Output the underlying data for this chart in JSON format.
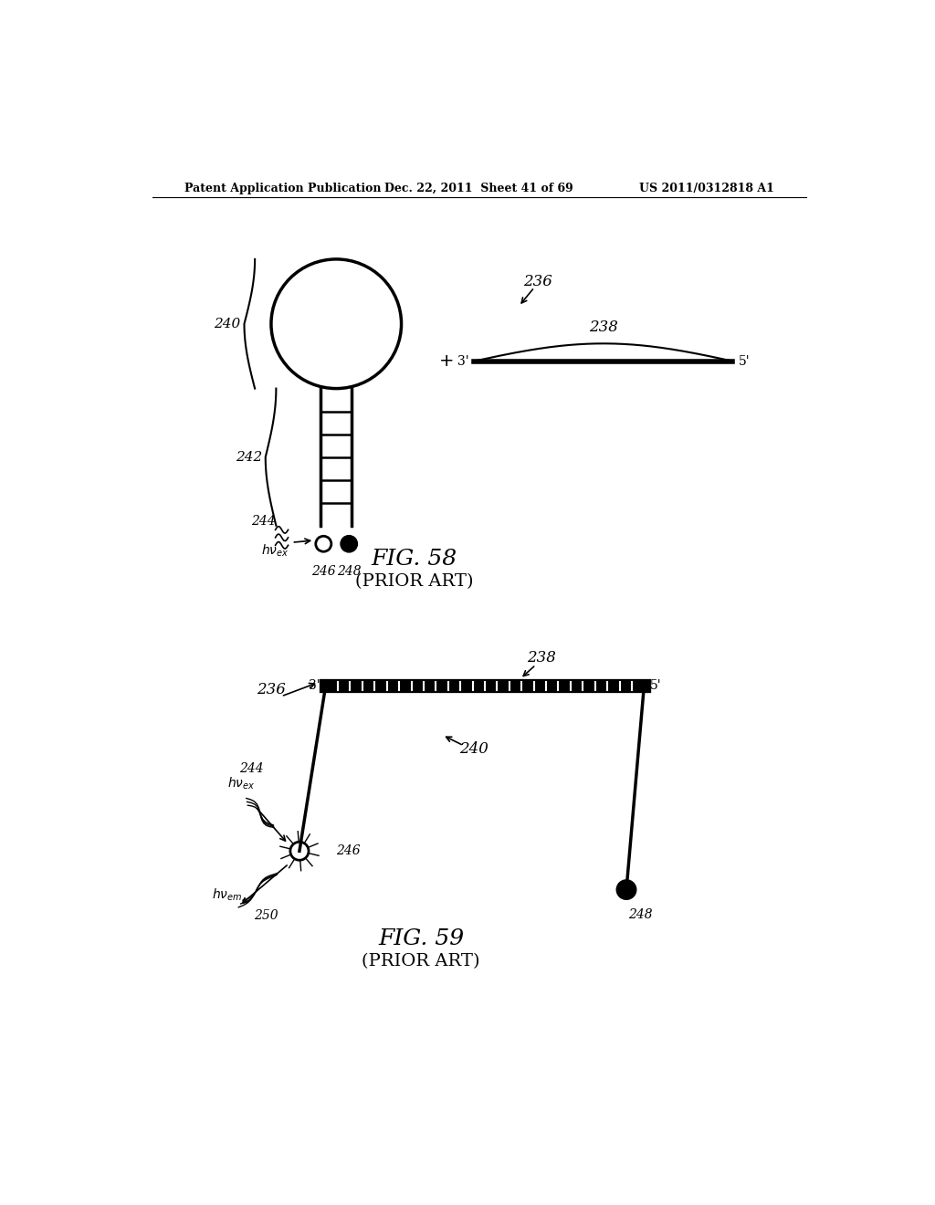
{
  "bg_color": "#ffffff",
  "header_left": "Patent Application Publication",
  "header_mid": "Dec. 22, 2011  Sheet 41 of 69",
  "header_right": "US 2011/0312818 A1",
  "fig58_title": "FIG. 58",
  "fig58_subtitle": "(PRIOR ART)",
  "fig59_title": "FIG. 59",
  "fig59_subtitle": "(PRIOR ART)"
}
